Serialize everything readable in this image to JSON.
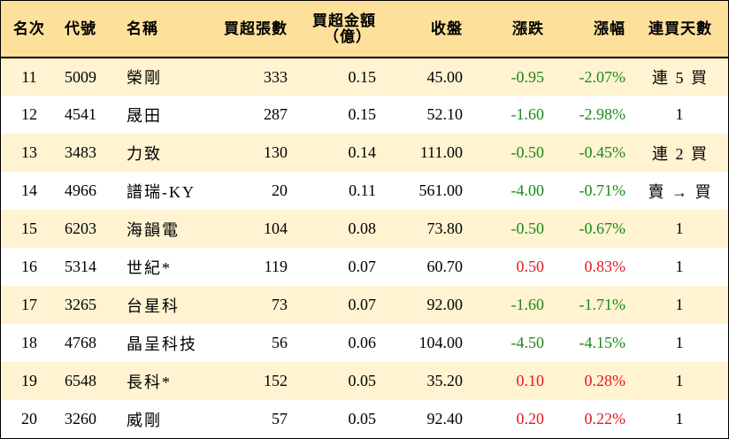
{
  "colors": {
    "header_bg": "#fde09a",
    "odd_row_bg": "#fff3d1",
    "even_row_bg": "#ffffff",
    "down_color": "#1a8a1a",
    "up_color": "#e8171f"
  },
  "table": {
    "headers": {
      "rank": "名次",
      "code": "代號",
      "name": "名稱",
      "net_buy_lots": "買超張數",
      "net_buy_amount_line1": "買超金額",
      "net_buy_amount_line2": "（億）",
      "close": "收盤",
      "change": "漲跌",
      "change_pct": "漲幅",
      "streak_days": "連買天數"
    },
    "rows": [
      {
        "rank": "11",
        "code": "5009",
        "name": "榮剛",
        "lots": "333",
        "amount": "0.15",
        "close": "45.00",
        "change": "-0.95",
        "pct": "-2.07%",
        "streak": "連 5 買",
        "dir": "down"
      },
      {
        "rank": "12",
        "code": "4541",
        "name": "晟田",
        "lots": "287",
        "amount": "0.15",
        "close": "52.10",
        "change": "-1.60",
        "pct": "-2.98%",
        "streak": "1",
        "dir": "down"
      },
      {
        "rank": "13",
        "code": "3483",
        "name": "力致",
        "lots": "130",
        "amount": "0.14",
        "close": "111.00",
        "change": "-0.50",
        "pct": "-0.45%",
        "streak": "連 2 買",
        "dir": "down"
      },
      {
        "rank": "14",
        "code": "4966",
        "name": "譜瑞-KY",
        "lots": "20",
        "amount": "0.11",
        "close": "561.00",
        "change": "-4.00",
        "pct": "-0.71%",
        "streak": "賣 → 買",
        "dir": "down"
      },
      {
        "rank": "15",
        "code": "6203",
        "name": "海韻電",
        "lots": "104",
        "amount": "0.08",
        "close": "73.80",
        "change": "-0.50",
        "pct": "-0.67%",
        "streak": "1",
        "dir": "down"
      },
      {
        "rank": "16",
        "code": "5314",
        "name": "世紀*",
        "lots": "119",
        "amount": "0.07",
        "close": "60.70",
        "change": "0.50",
        "pct": "0.83%",
        "streak": "1",
        "dir": "up"
      },
      {
        "rank": "17",
        "code": "3265",
        "name": "台星科",
        "lots": "73",
        "amount": "0.07",
        "close": "92.00",
        "change": "-1.60",
        "pct": "-1.71%",
        "streak": "1",
        "dir": "down"
      },
      {
        "rank": "18",
        "code": "4768",
        "name": "晶呈科技",
        "lots": "56",
        "amount": "0.06",
        "close": "104.00",
        "change": "-4.50",
        "pct": "-4.15%",
        "streak": "1",
        "dir": "down"
      },
      {
        "rank": "19",
        "code": "6548",
        "name": "長科*",
        "lots": "152",
        "amount": "0.05",
        "close": "35.20",
        "change": "0.10",
        "pct": "0.28%",
        "streak": "1",
        "dir": "up"
      },
      {
        "rank": "20",
        "code": "3260",
        "name": "威剛",
        "lots": "57",
        "amount": "0.05",
        "close": "92.40",
        "change": "0.20",
        "pct": "0.22%",
        "streak": "1",
        "dir": "up"
      }
    ]
  }
}
